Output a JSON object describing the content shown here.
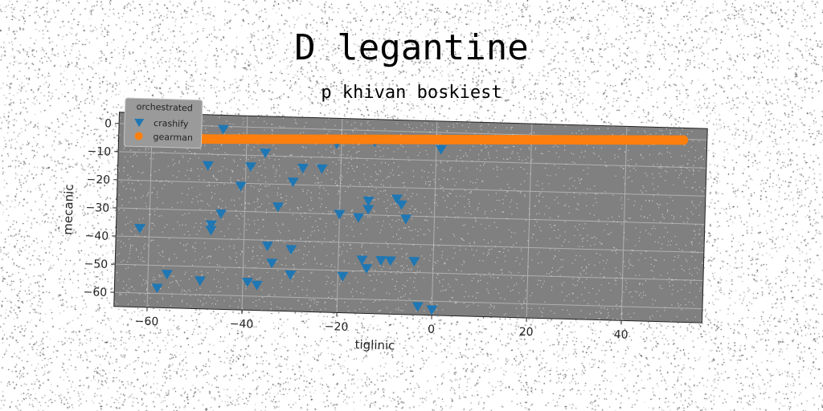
{
  "chart_data": {
    "type": "scatter",
    "title": "D legantine",
    "subtitle": "p khivan boskiest",
    "xlabel": "tiglinic",
    "ylabel": "mecanic",
    "xlim": [
      -67,
      57
    ],
    "ylim": [
      -65,
      4
    ],
    "xticks": [
      -60,
      -40,
      -20,
      0,
      20,
      40
    ],
    "yticks": [
      0,
      -10,
      -20,
      -30,
      -40,
      -50,
      -60
    ],
    "grid": true,
    "legend": {
      "title": "orchestrated",
      "placement": "top-left"
    },
    "series": [
      {
        "name": "crashify",
        "marker": "triangle-down",
        "color": "#1f77b4",
        "points": [
          [
            -62,
            -37
          ],
          [
            -58,
            -58
          ],
          [
            -56,
            -53
          ],
          [
            -49,
            -55
          ],
          [
            -48,
            -14
          ],
          [
            -47,
            -35
          ],
          [
            -47,
            -37
          ],
          [
            -45,
            -31
          ],
          [
            -45,
            -1
          ],
          [
            -41,
            -21
          ],
          [
            -39,
            -14
          ],
          [
            -39,
            -55
          ],
          [
            -37,
            -56
          ],
          [
            -36,
            -9
          ],
          [
            -35,
            -42
          ],
          [
            -34,
            -48
          ],
          [
            -33,
            -28
          ],
          [
            -30,
            -19
          ],
          [
            -30,
            -43
          ],
          [
            -30,
            -52
          ],
          [
            -28,
            -14
          ],
          [
            -24,
            -14
          ],
          [
            -21,
            -5
          ],
          [
            -20,
            -30
          ],
          [
            -19,
            -52
          ],
          [
            -16,
            -31
          ],
          [
            -15,
            -46
          ],
          [
            -14,
            -49
          ],
          [
            -14,
            -25
          ],
          [
            -14,
            -28
          ],
          [
            -13,
            -4
          ],
          [
            -11,
            -46
          ],
          [
            -9,
            -46
          ],
          [
            -8,
            -24
          ],
          [
            -7,
            -26
          ],
          [
            -6,
            -31
          ],
          [
            -4,
            -46
          ],
          [
            -3,
            -62
          ],
          [
            0,
            -63
          ],
          [
            1,
            -6
          ]
        ]
      },
      {
        "name": "gearman",
        "marker": "circle",
        "color": "#ff7f0e",
        "x_range": [
          -52,
          52
        ],
        "y_range": [
          -4.8,
          -0.3
        ],
        "n_points": 140
      }
    ]
  }
}
